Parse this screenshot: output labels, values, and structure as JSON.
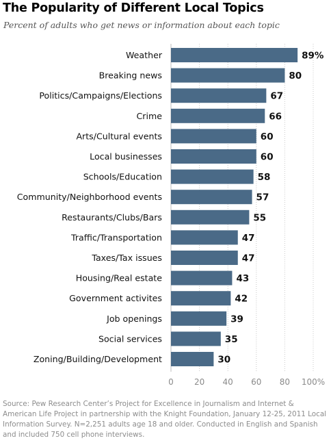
{
  "title": "The Popularity of Different Local Topics",
  "subtitle": "Percent of adults who get news or information about each topic",
  "source": "Source: Pew Research Center’s Project for Excellence in Journalism and Internet & American Life Project in partnership with the Knight Foundation, January 12-25, 2011 Local Information Survey. N=2,251 adults age 18 and older. Conducted in English and Spanish and included 750 cell phone interviews.",
  "colors": {
    "bar": "#4a6a87",
    "axis": "#bdbdbd",
    "grid": "#c8c8c8"
  },
  "chart_data": {
    "type": "bar",
    "orientation": "horizontal",
    "categories": [
      "Weather",
      "Breaking news",
      "Politics/Campaigns/Elections",
      "Crime",
      "Arts/Cultural events",
      "Local businesses",
      "Schools/Education",
      "Community/Neighborhood events",
      "Restaurants/Clubs/Bars",
      "Traffic/Transportation",
      "Taxes/Tax issues",
      "Housing/Real estate",
      "Government activites",
      "Job openings",
      "Social services",
      "Zoning/Building/Development"
    ],
    "values": [
      89,
      80,
      67,
      66,
      60,
      60,
      58,
      57,
      55,
      47,
      47,
      43,
      42,
      39,
      35,
      30
    ],
    "value_labels": [
      "89%",
      "80",
      "67",
      "66",
      "60",
      "60",
      "58",
      "57",
      "55",
      "47",
      "47",
      "43",
      "42",
      "39",
      "35",
      "30"
    ],
    "xlim": [
      0,
      100
    ],
    "ticks": [
      0,
      20,
      40,
      60,
      80,
      100
    ],
    "tick_labels": [
      "0",
      "20",
      "40",
      "60",
      "80",
      "100%"
    ],
    "grid": "vertical dotted",
    "legend": "none"
  }
}
